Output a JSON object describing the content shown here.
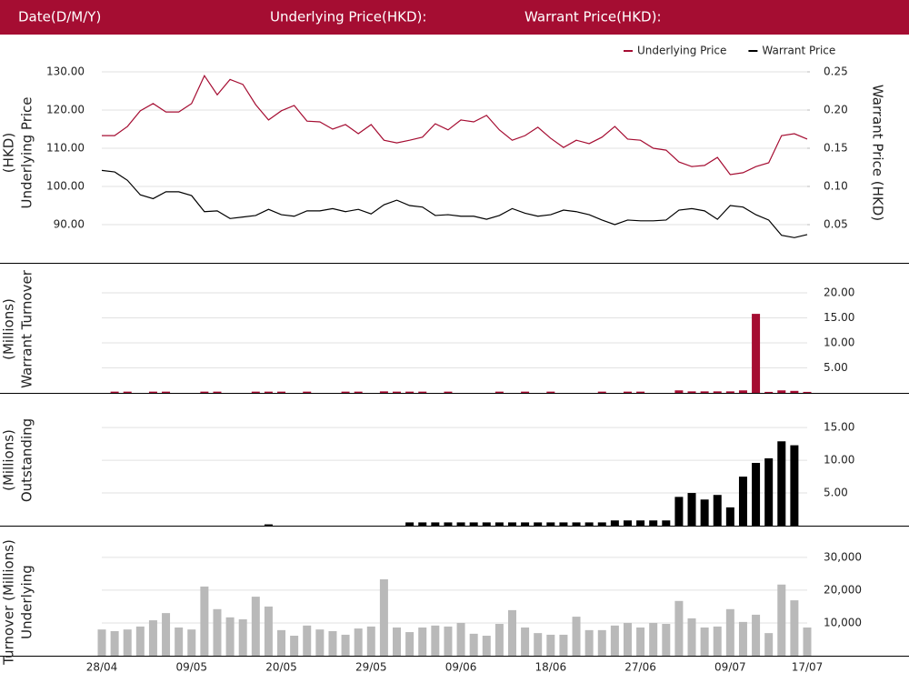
{
  "header": {
    "date": "Date(D/M/Y)",
    "underlying": "Underlying Price(HKD):",
    "warrant": "Warrant Price(HKD):"
  },
  "chart_data": [
    {
      "type": "line",
      "y_label": [
        "Underlying Price",
        "(HKD)"
      ],
      "y2_label": [
        "Warrant  Price (HKD)"
      ],
      "legend": "top-right",
      "grid": true,
      "ylim": [
        85,
        135
      ],
      "yticks": [
        {
          "value": 90,
          "label": "90.00"
        },
        {
          "value": 100,
          "label": "100.00"
        },
        {
          "value": 110,
          "label": "110.00"
        },
        {
          "value": 120,
          "label": "120.00"
        },
        {
          "value": 130,
          "label": "130.00"
        }
      ],
      "y2lim": [
        0.025,
        0.275
      ],
      "y2ticks": [
        0.05,
        {
          "value": 0.1,
          "label": "0.10"
        },
        0.15,
        {
          "value": 0.2,
          "label": "0.20"
        },
        0.25
      ],
      "series": [
        {
          "name": "Underlying Price",
          "color": "#a50d32",
          "values": [
            113.3,
            113.3,
            115.7,
            119.8,
            121.7,
            119.5,
            119.5,
            121.7,
            129,
            124,
            128,
            126.7,
            121.4,
            117.4,
            119.8,
            121.2,
            117.1,
            116.9,
            115,
            116.2,
            113.8,
            116.2,
            112.1,
            111.4,
            112.1,
            112.9,
            116.4,
            114.8,
            117.4,
            116.9,
            118.6,
            114.8,
            112.1,
            113.3,
            115.5,
            112.6,
            110.2,
            112.1,
            111.2,
            112.9,
            115.7,
            112.4,
            112.1,
            110,
            109.5,
            106.4,
            105.2,
            105.5,
            107.6,
            103.1,
            103.6,
            105.2,
            106.2,
            113.3,
            113.8,
            112.4
          ]
        },
        {
          "name": "Warrant Price",
          "color": "#000000",
          "axis": "y2",
          "values": [
            0.121,
            0.119,
            0.108,
            0.089,
            0.084,
            0.093,
            0.093,
            0.088,
            0.067,
            0.068,
            0.058,
            0.06,
            0.062,
            0.07,
            0.063,
            0.061,
            0.068,
            0.068,
            0.071,
            0.067,
            0.07,
            0.064,
            0.076,
            0.082,
            0.075,
            0.073,
            0.062,
            0.063,
            0.061,
            0.061,
            0.057,
            0.062,
            0.071,
            0.065,
            0.061,
            0.063,
            0.069,
            0.067,
            0.063,
            0.056,
            0.05,
            0.056,
            0.055,
            0.055,
            0.056,
            0.069,
            0.071,
            0.068,
            0.057,
            0.075,
            0.073,
            0.063,
            0.056,
            0.036,
            0.033,
            0.037
          ]
        }
      ]
    },
    {
      "type": "bar",
      "y_label": [
        "Warrant  Turnover",
        "(Millions)"
      ],
      "color": "#a50d32",
      "grid": true,
      "ylim": [
        0,
        24
      ],
      "yticks": [
        {
          "value": 5,
          "label": "5.00"
        },
        {
          "value": 10,
          "label": "10.00"
        },
        {
          "value": 15,
          "label": "15.00"
        },
        {
          "value": 20,
          "label": "20.00"
        }
      ],
      "values": [
        0,
        0.25,
        0.25,
        0,
        0.25,
        0.25,
        0,
        0,
        0.25,
        0.25,
        0,
        0,
        0.25,
        0.25,
        0.25,
        0,
        0.25,
        0,
        0,
        0.25,
        0.25,
        0,
        0.3,
        0.25,
        0.25,
        0.25,
        0,
        0.25,
        0,
        0,
        0,
        0.25,
        0,
        0.25,
        0,
        0.25,
        0,
        0,
        0,
        0.25,
        0,
        0.25,
        0.25,
        0,
        0,
        0.5,
        0.3,
        0.3,
        0.3,
        0.3,
        0.5,
        15.8,
        0.2,
        0.5,
        0.4,
        0.2
      ]
    },
    {
      "type": "bar",
      "y_label": [
        "Outstanding",
        "(Millions)"
      ],
      "color": "#000000",
      "grid": true,
      "ylim": [
        0,
        18.5
      ],
      "yticks": [
        {
          "value": 5,
          "label": "5.00"
        },
        {
          "value": 10,
          "label": "10.00"
        },
        {
          "value": 15,
          "label": "15.00"
        }
      ],
      "values": [
        0,
        0,
        0,
        0,
        0,
        0,
        0,
        0,
        0,
        0,
        0,
        0,
        0,
        0.2,
        0,
        0,
        0,
        0,
        0,
        0,
        0,
        0,
        0,
        0,
        0.5,
        0.5,
        0.5,
        0.5,
        0.5,
        0.5,
        0.5,
        0.5,
        0.5,
        0.5,
        0.5,
        0.5,
        0.5,
        0.5,
        0.5,
        0.5,
        0.8,
        0.8,
        0.8,
        0.8,
        0.8,
        4.4,
        5,
        4,
        4.7,
        2.8,
        7.5,
        9.6,
        10.3,
        12.9,
        12.3,
        0
      ]
    },
    {
      "type": "bar",
      "y_label": [
        "Underlying",
        "Turnover (Millions)"
      ],
      "color": "#b9b9b9",
      "grid": true,
      "ylim": [
        0,
        38000
      ],
      "yticks": [
        {
          "value": 10000,
          "label": "10,000"
        },
        {
          "value": 20000,
          "label": "20,000"
        },
        {
          "value": 30000,
          "label": "30,000"
        }
      ],
      "categories": [
        "28/04",
        null,
        null,
        null,
        null,
        null,
        null,
        "09/05",
        null,
        null,
        null,
        null,
        null,
        null,
        "20/05",
        null,
        null,
        null,
        null,
        null,
        null,
        "29/05",
        null,
        null,
        null,
        null,
        null,
        null,
        "09/06",
        null,
        null,
        null,
        null,
        null,
        null,
        "18/06",
        null,
        null,
        null,
        null,
        null,
        null,
        "27/06",
        null,
        null,
        null,
        null,
        null,
        null,
        "09/07",
        null,
        null,
        null,
        null,
        null,
        "17/07"
      ],
      "values": [
        8000,
        7500,
        8000,
        8900,
        10800,
        13000,
        8600,
        8000,
        21100,
        14200,
        11700,
        11100,
        18000,
        15000,
        7800,
        6100,
        9200,
        8000,
        7500,
        6400,
        8300,
        8900,
        23300,
        8600,
        7200,
        8600,
        9200,
        8900,
        10000,
        6700,
        6100,
        9700,
        13900,
        8600,
        6900,
        6400,
        6400,
        11900,
        7800,
        7800,
        9200,
        10000,
        8600,
        10000,
        9700,
        16700,
        11400,
        8600,
        8900,
        14200,
        10300,
        12500,
        6900,
        21700,
        16900,
        8600
      ]
    }
  ]
}
